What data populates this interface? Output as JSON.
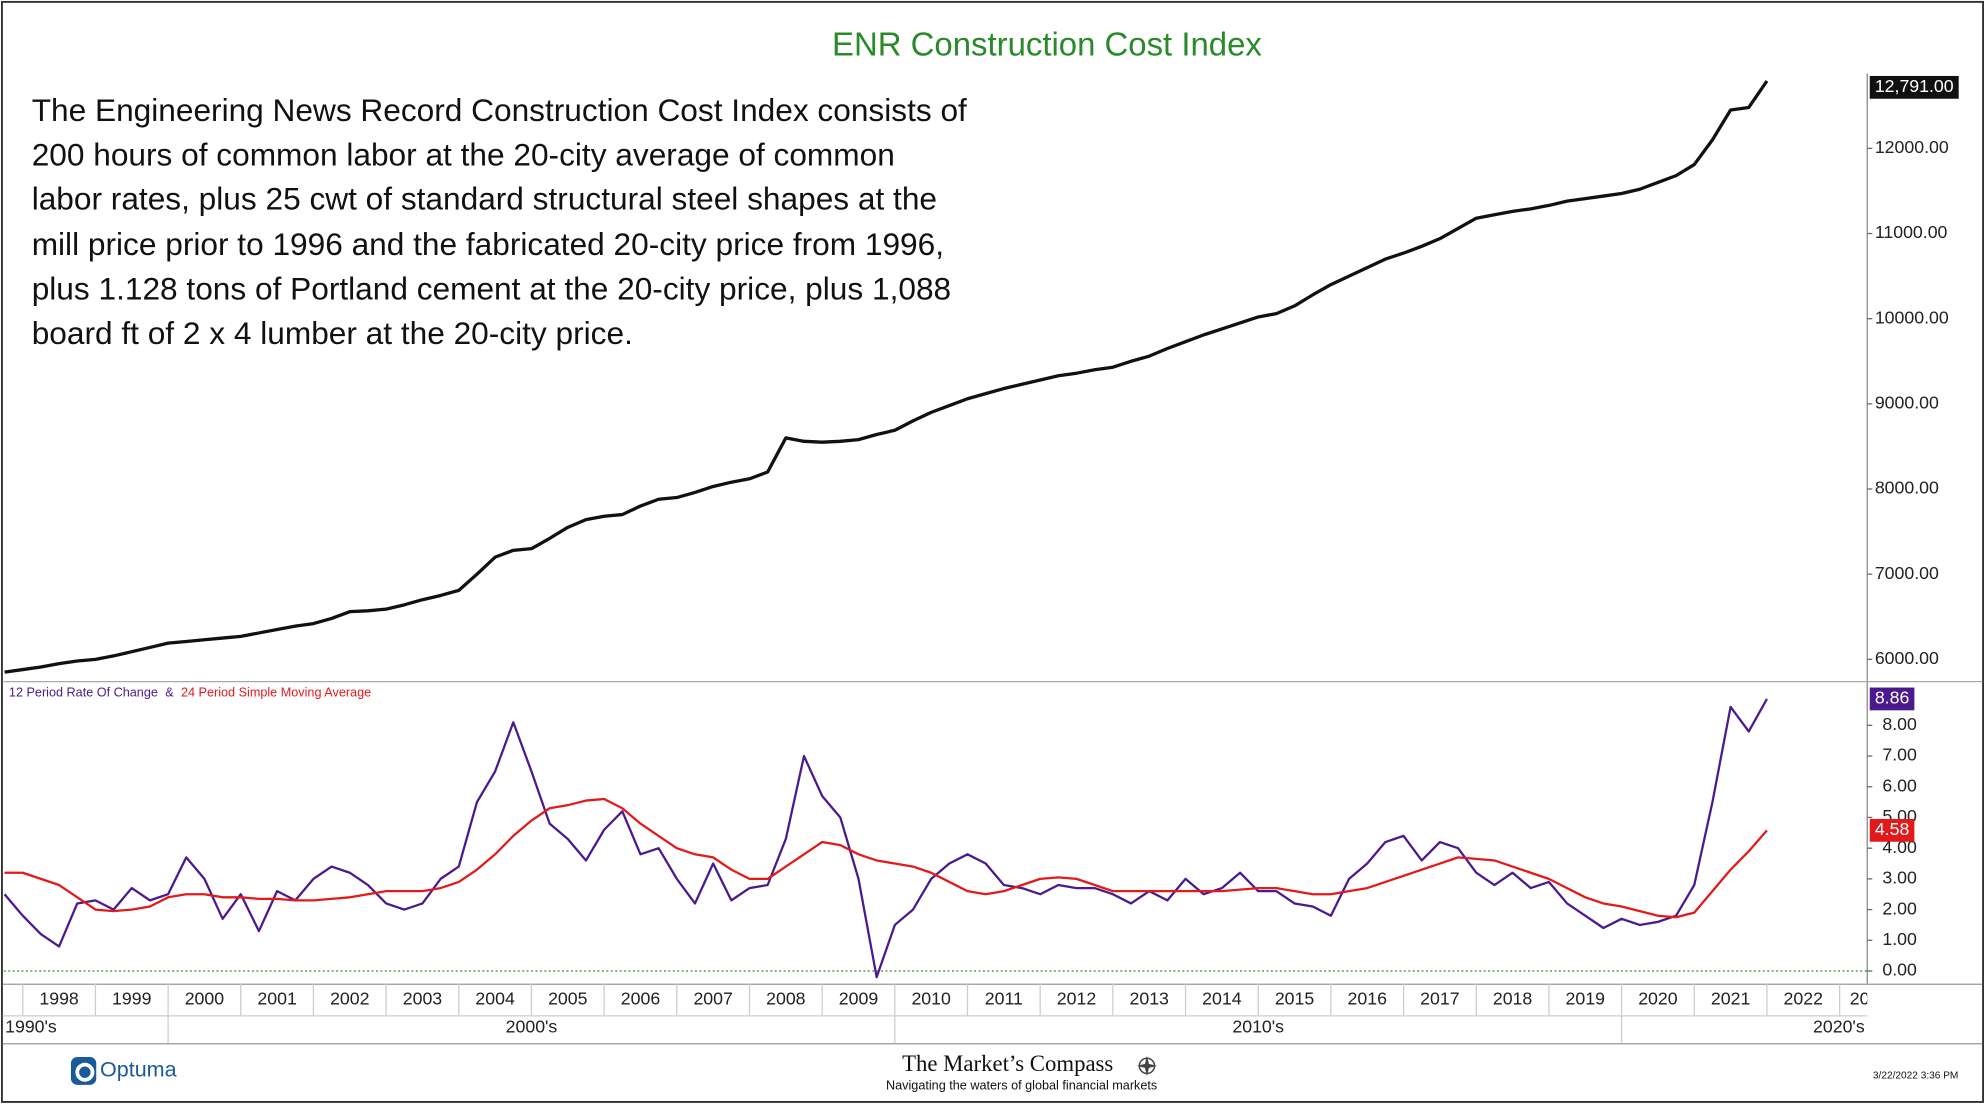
{
  "chart_data": {
    "type": "line",
    "title": "ENR Construction Cost Index",
    "description": [
      "The Engineering News Record Construction Cost Index consists of",
      "200 hours of common labor at the 20-city average of common",
      "labor rates, plus 25 cwt of standard structural steel shapes at the",
      "mill price prior to 1996 and the fabricated 20-city price from 1996,",
      "plus 1.128 tons of Portland cement at the 20-city price, plus 1,088",
      "board ft of 2 x 4 lumber at the 20-city price."
    ],
    "legend_separator": "&",
    "x": [
      1997.75,
      1998,
      1998.25,
      1998.5,
      1998.75,
      1999,
      1999.25,
      1999.5,
      1999.75,
      2000,
      2000.25,
      2000.5,
      2000.75,
      2001,
      2001.25,
      2001.5,
      2001.75,
      2002,
      2002.25,
      2002.5,
      2002.75,
      2003,
      2003.25,
      2003.5,
      2003.75,
      2004,
      2004.25,
      2004.5,
      2004.75,
      2005,
      2005.25,
      2005.5,
      2005.75,
      2006,
      2006.25,
      2006.5,
      2006.75,
      2007,
      2007.25,
      2007.5,
      2007.75,
      2008,
      2008.25,
      2008.5,
      2008.75,
      2009,
      2009.25,
      2009.5,
      2009.75,
      2010,
      2010.25,
      2010.5,
      2010.75,
      2011,
      2011.25,
      2011.5,
      2011.75,
      2012,
      2012.25,
      2012.5,
      2012.75,
      2013,
      2013.25,
      2013.5,
      2013.75,
      2014,
      2014.25,
      2014.5,
      2014.75,
      2015,
      2015.25,
      2015.5,
      2015.75,
      2016,
      2016.25,
      2016.5,
      2016.75,
      2017,
      2017.25,
      2017.5,
      2017.75,
      2018,
      2018.25,
      2018.5,
      2018.75,
      2019,
      2019.25,
      2019.5,
      2019.75,
      2020,
      2020.25,
      2020.5,
      2020.75,
      2021,
      2021.25,
      2021.5,
      2021.75,
      2022
    ],
    "xlim": [
      1997.74,
      2023.38
    ],
    "xticks": [
      1998,
      1999,
      2000,
      2001,
      2002,
      2003,
      2004,
      2005,
      2006,
      2007,
      2008,
      2009,
      2010,
      2011,
      2012,
      2013,
      2014,
      2015,
      2016,
      2017,
      2018,
      2019,
      2020,
      2021,
      2022,
      {
        "value": 2023,
        "label": "20"
      }
    ],
    "decades": [
      {
        "value": 1990,
        "label": "1990's"
      },
      {
        "value": 2000,
        "label": "2000's"
      },
      {
        "value": 2010,
        "label": "2010's"
      },
      {
        "value": 2020,
        "label": "2020's"
      }
    ],
    "ylim": [
      5760,
      12880
    ],
    "yticks": [
      {
        "value": 6000,
        "label": "6000.00"
      },
      {
        "value": 7000,
        "label": "7000.00"
      },
      {
        "value": 8000,
        "label": "8000.00"
      },
      {
        "value": 9000,
        "label": "9000.00"
      },
      {
        "value": 10000,
        "label": "10000.00"
      },
      {
        "value": 11000,
        "label": "11000.00"
      },
      {
        "value": 12000,
        "label": "12000.00"
      }
    ],
    "y2lim": [
      -0.41,
      9.36
    ],
    "y2ticks": [
      {
        "value": 0,
        "label": "0.00"
      },
      {
        "value": 1,
        "label": "1.00"
      },
      {
        "value": 2,
        "label": "2.00"
      },
      {
        "value": 3,
        "label": "3.00"
      },
      {
        "value": 4,
        "label": "4.00"
      },
      {
        "value": 5,
        "label": "5.00"
      },
      {
        "value": 6,
        "label": "6.00"
      },
      {
        "value": 7,
        "label": "7.00"
      },
      {
        "value": 8,
        "label": "8.00"
      }
    ],
    "series": [
      {
        "color": "#111111",
        "values": [
          5850,
          5880,
          5910,
          5950,
          5980,
          6000,
          6040,
          6090,
          6140,
          6190,
          6210,
          6230,
          6250,
          6270,
          6310,
          6350,
          6390,
          6420,
          6480,
          6560,
          6570,
          6590,
          6640,
          6700,
          6750,
          6810,
          7000,
          7200,
          7280,
          7300,
          7420,
          7550,
          7640,
          7680,
          7700,
          7800,
          7880,
          7900,
          7960,
          8030,
          8080,
          8120,
          8200,
          8600,
          8560,
          8550,
          8560,
          8580,
          8640,
          8690,
          8800,
          8900,
          8980,
          9060,
          9120,
          9180,
          9230,
          9280,
          9330,
          9360,
          9400,
          9430,
          9500,
          9560,
          9650,
          9730,
          9810,
          9880,
          9950,
          10020,
          10060,
          10150,
          10280,
          10400,
          10500,
          10600,
          10700,
          10770,
          10850,
          10940,
          11060,
          11180,
          11220,
          11260,
          11290,
          11330,
          11380,
          11410,
          11440,
          11470,
          11520,
          11600,
          11680,
          11810,
          12100,
          12450,
          12480,
          12791
        ],
        "value_labels": [
          null,
          null,
          null,
          null,
          null,
          null,
          null,
          null,
          null,
          null,
          null,
          null,
          null,
          null,
          null,
          null,
          null,
          null,
          null,
          null,
          null,
          null,
          null,
          null,
          null,
          null,
          null,
          null,
          null,
          null,
          null,
          null,
          null,
          null,
          null,
          null,
          null,
          null,
          null,
          null,
          null,
          null,
          null,
          null,
          null,
          null,
          null,
          null,
          null,
          null,
          null,
          null,
          null,
          null,
          null,
          null,
          null,
          null,
          null,
          null,
          null,
          null,
          null,
          null,
          null,
          null,
          null,
          null,
          null,
          null,
          null,
          null,
          null,
          null,
          null,
          null,
          null,
          null,
          null,
          null,
          null,
          null,
          null,
          null,
          null,
          null,
          null,
          null,
          null,
          null,
          null,
          null,
          null,
          null,
          null,
          null,
          null,
          "12,791.00"
        ]
      },
      {
        "name": "12 Period Rate Of Change",
        "color": "#4b1a8c",
        "axis": "y2",
        "values": [
          2.5,
          1.8,
          1.2,
          0.8,
          2.2,
          2.3,
          2.0,
          2.7,
          2.3,
          2.5,
          3.7,
          3.0,
          1.7,
          2.5,
          1.3,
          2.6,
          2.3,
          3.0,
          3.4,
          3.2,
          2.8,
          2.2,
          2.0,
          2.2,
          3.0,
          3.4,
          5.5,
          6.5,
          8.1,
          6.5,
          4.8,
          4.3,
          3.6,
          4.6,
          5.2,
          3.8,
          4.0,
          3.0,
          2.2,
          3.5,
          2.3,
          2.7,
          2.8,
          4.3,
          7.0,
          5.7,
          5.0,
          3.0,
          -0.2,
          1.5,
          2.0,
          3.0,
          3.5,
          3.8,
          3.5,
          2.8,
          2.7,
          2.5,
          2.8,
          2.7,
          2.7,
          2.5,
          2.2,
          2.6,
          2.3,
          3.0,
          2.5,
          2.7,
          3.2,
          2.6,
          2.6,
          2.2,
          2.1,
          1.8,
          3.0,
          3.5,
          4.2,
          4.4,
          3.6,
          4.2,
          4.0,
          3.2,
          2.8,
          3.2,
          2.7,
          2.9,
          2.2,
          1.8,
          1.4,
          1.7,
          1.5,
          1.6,
          1.8,
          2.8,
          5.5,
          8.6,
          7.8,
          8.86
        ]
      },
      {
        "name": "24 Period Simple Moving Average",
        "color": "#e31a1c",
        "axis": "y2",
        "values": [
          3.2,
          3.2,
          3.0,
          2.8,
          2.4,
          2.0,
          1.95,
          2.0,
          2.1,
          2.4,
          2.5,
          2.5,
          2.4,
          2.4,
          2.35,
          2.35,
          2.3,
          2.3,
          2.35,
          2.4,
          2.5,
          2.6,
          2.6,
          2.6,
          2.7,
          2.9,
          3.3,
          3.8,
          4.4,
          4.9,
          5.3,
          5.4,
          5.55,
          5.6,
          5.3,
          4.8,
          4.4,
          4.0,
          3.8,
          3.7,
          3.3,
          3.0,
          3.0,
          3.4,
          3.8,
          4.2,
          4.1,
          3.8,
          3.6,
          3.5,
          3.4,
          3.2,
          2.9,
          2.6,
          2.5,
          2.6,
          2.8,
          3.0,
          3.05,
          3.0,
          2.8,
          2.6,
          2.6,
          2.6,
          2.6,
          2.6,
          2.6,
          2.6,
          2.65,
          2.7,
          2.7,
          2.6,
          2.5,
          2.5,
          2.6,
          2.7,
          2.9,
          3.1,
          3.3,
          3.5,
          3.7,
          3.65,
          3.6,
          3.4,
          3.2,
          3.0,
          2.7,
          2.4,
          2.2,
          2.1,
          1.95,
          1.8,
          1.75,
          1.9,
          2.6,
          3.3,
          3.9,
          4.58
        ]
      }
    ]
  },
  "footer": {
    "logo": "Optuma",
    "brand": "The Market’s Compass",
    "tagline": "Navigating the waters of global financial markets",
    "timestamp": "3/22/2022 3:36 PM"
  }
}
